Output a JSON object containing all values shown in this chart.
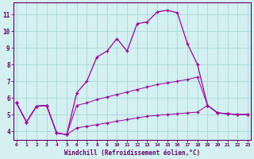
{
  "xlabel": "Windchill (Refroidissement éolien,°C)",
  "bg_color": "#d4f0f0",
  "line_color": "#990099",
  "grid_color": "#aad8d8",
  "axis_color": "#660066",
  "x_ticks": [
    0,
    1,
    2,
    3,
    4,
    5,
    6,
    7,
    8,
    9,
    10,
    11,
    12,
    13,
    14,
    15,
    16,
    17,
    18,
    19,
    20,
    21,
    22,
    23
  ],
  "y_ticks": [
    4,
    5,
    6,
    7,
    8,
    9,
    10,
    11
  ],
  "ylim": [
    3.5,
    11.7
  ],
  "xlim": [
    -0.3,
    23.3
  ],
  "line1_x": [
    0,
    1,
    2,
    3,
    4,
    5,
    6,
    7,
    8,
    9,
    10,
    11,
    12,
    13,
    14,
    15,
    16,
    17,
    18,
    19,
    20,
    21,
    22,
    23
  ],
  "line1_y": [
    5.7,
    4.55,
    5.5,
    5.55,
    3.9,
    3.8,
    6.3,
    7.0,
    8.45,
    8.8,
    9.55,
    8.8,
    10.45,
    10.55,
    11.15,
    11.25,
    11.1,
    9.25,
    8.0,
    5.55,
    5.1,
    5.05,
    5.0,
    5.0
  ],
  "line2_x": [
    0,
    1,
    2,
    3,
    4,
    5,
    6,
    7,
    8,
    9,
    10,
    11,
    12,
    13,
    14,
    15,
    16,
    17,
    18,
    19,
    20,
    21,
    22,
    23
  ],
  "line2_y": [
    5.7,
    4.55,
    5.5,
    5.55,
    3.9,
    3.8,
    5.55,
    5.7,
    5.9,
    6.05,
    6.2,
    6.35,
    6.5,
    6.65,
    6.8,
    6.9,
    7.0,
    7.1,
    7.25,
    5.55,
    5.1,
    5.05,
    5.0,
    5.0
  ],
  "line3_x": [
    0,
    1,
    2,
    3,
    4,
    5,
    6,
    7,
    8,
    9,
    10,
    11,
    12,
    13,
    14,
    15,
    16,
    17,
    18,
    19,
    20,
    21,
    22,
    23
  ],
  "line3_y": [
    5.7,
    4.55,
    5.5,
    5.55,
    3.9,
    3.8,
    4.2,
    4.3,
    4.4,
    4.5,
    4.6,
    4.7,
    4.8,
    4.9,
    4.95,
    5.0,
    5.05,
    5.1,
    5.15,
    5.55,
    5.1,
    5.05,
    5.0,
    5.0
  ]
}
